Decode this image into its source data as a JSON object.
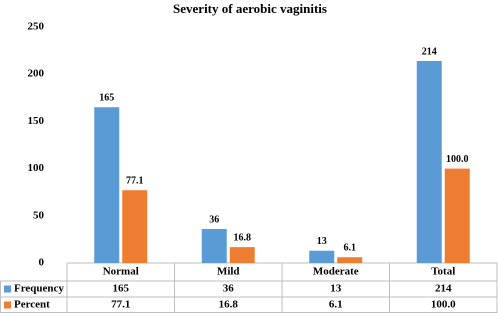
{
  "chart_data": {
    "type": "bar",
    "title": "Severity of aerobic vaginitis",
    "categories": [
      "Normal",
      "Mild",
      "Moderate",
      "Total"
    ],
    "series": [
      {
        "name": "Frequency",
        "color": "#5b9bd5",
        "values": [
          165,
          36,
          13,
          214
        ]
      },
      {
        "name": "Percent",
        "color": "#ed7d31",
        "values": [
          77.1,
          16.8,
          6.1,
          100
        ],
        "value_labels": [
          "77.1",
          "16.8",
          "6.1",
          "100.0"
        ]
      }
    ],
    "ylim": [
      0,
      250
    ],
    "yticks": [
      0,
      50,
      100,
      150,
      200,
      250
    ],
    "grid": false,
    "legend": "table"
  }
}
